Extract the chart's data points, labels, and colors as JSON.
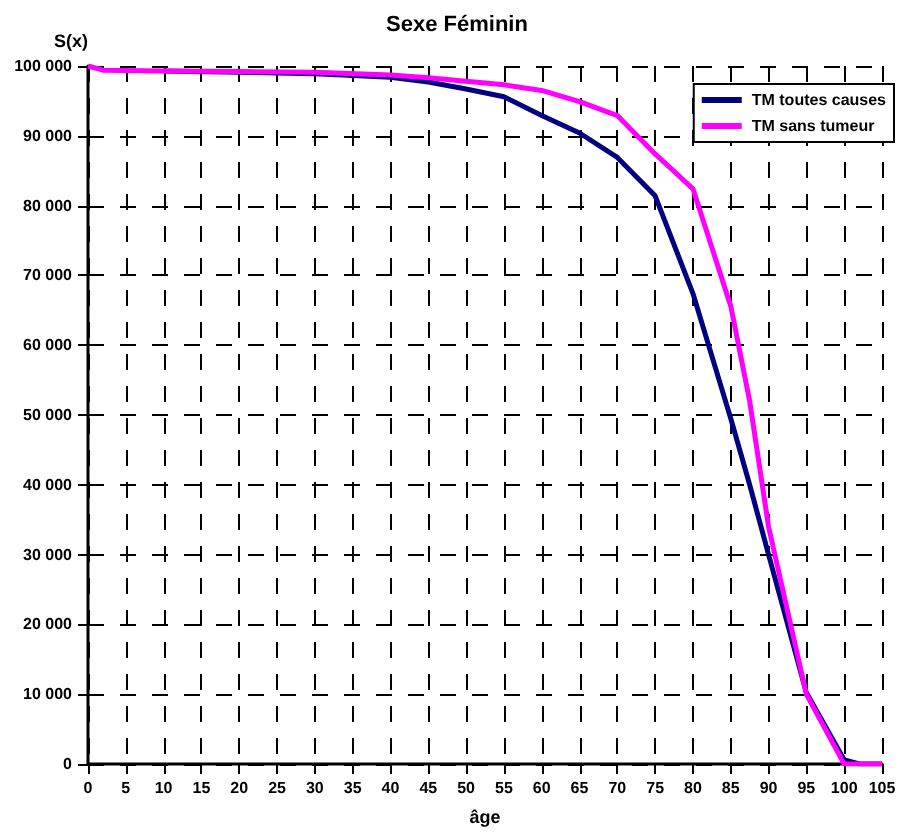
{
  "chart_data": {
    "type": "line",
    "title": "Sexe Féminin",
    "xlabel": "âge",
    "ylabel": "S(x)",
    "xlim": [
      0,
      105
    ],
    "xticks": [
      0,
      5,
      10,
      15,
      20,
      25,
      30,
      35,
      40,
      45,
      50,
      55,
      60,
      65,
      70,
      75,
      80,
      85,
      90,
      95,
      100,
      105
    ],
    "ylim": [
      0,
      100000
    ],
    "yticks": [
      {
        "value": 0,
        "label": "0"
      },
      {
        "value": 10000,
        "label": "10 000"
      },
      {
        "value": 20000,
        "label": "20 000"
      },
      {
        "value": 30000,
        "label": "30 000"
      },
      {
        "value": 40000,
        "label": "40 000"
      },
      {
        "value": 50000,
        "label": "50 000"
      },
      {
        "value": 60000,
        "label": "60 000"
      },
      {
        "value": 70000,
        "label": "70 000"
      },
      {
        "value": 80000,
        "label": "80 000"
      },
      {
        "value": 90000,
        "label": "90 000"
      },
      {
        "value": 100000,
        "label": "100 000"
      }
    ],
    "grid": true,
    "legend": "top right",
    "marker": "none",
    "line_style": "solid",
    "x": [
      0,
      2,
      10,
      20,
      30,
      40,
      45,
      50,
      55,
      60,
      65,
      70,
      75,
      80,
      85,
      87.5,
      90,
      95,
      100,
      102,
      105
    ],
    "series": [
      {
        "name": "TM toutes causes",
        "color": "#000080",
        "values": [
          null,
          null,
          99300,
          99100,
          98900,
          98400,
          97700,
          96700,
          95600,
          92900,
          90400,
          86900,
          81400,
          67400,
          49500,
          40000,
          30000,
          10200,
          600,
          0,
          0
        ]
      },
      {
        "name": "TM sans tumeur",
        "color": "#ff00ff",
        "values": [
          100000,
          99400,
          99300,
          99200,
          99100,
          98700,
          98300,
          97800,
          97300,
          96500,
          94900,
          92900,
          87400,
          82400,
          65600,
          52000,
          34000,
          10000,
          0,
          0,
          0
        ]
      }
    ]
  }
}
